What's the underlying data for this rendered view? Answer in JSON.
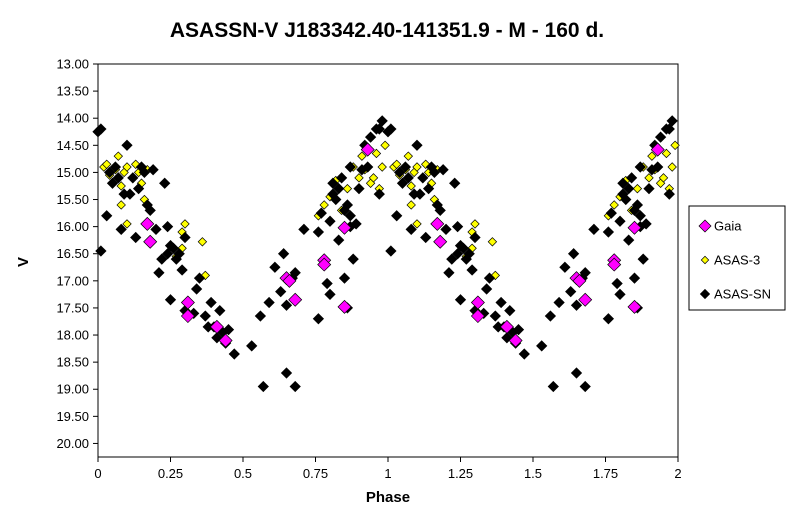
{
  "chart_data": {
    "type": "scatter",
    "title": "ASASSN-V J183342.40-141351.9  - M - 160 d.",
    "xlabel": "Phase",
    "ylabel": "V",
    "xlim": [
      0,
      2
    ],
    "ylim": [
      13.0,
      20.25
    ],
    "y_inverted": true,
    "grid": false,
    "legend_position": "right",
    "x_ticks": [
      "0",
      "0.25",
      "0.5",
      "0.75",
      "1",
      "1.25",
      "1.5",
      "1.75",
      "2"
    ],
    "y_ticks": [
      "13.00",
      "13.50",
      "14.00",
      "14.50",
      "15.00",
      "15.50",
      "16.00",
      "16.50",
      "17.00",
      "17.50",
      "18.00",
      "18.50",
      "19.00",
      "19.50",
      "20.00"
    ],
    "series": [
      {
        "name": "Gaia",
        "color": "#ff00ff",
        "marker": "diamond-large",
        "points": [
          [
            0.17,
            15.95
          ],
          [
            0.18,
            16.28
          ],
          [
            0.31,
            17.4
          ],
          [
            0.31,
            17.65
          ],
          [
            0.41,
            17.85
          ],
          [
            0.44,
            18.1
          ],
          [
            0.65,
            16.95
          ],
          [
            0.66,
            17.0
          ],
          [
            0.68,
            17.35
          ],
          [
            0.78,
            16.62
          ],
          [
            0.78,
            16.7
          ],
          [
            0.85,
            16.02
          ],
          [
            0.85,
            17.48
          ],
          [
            0.93,
            14.58
          ],
          [
            1.17,
            15.95
          ],
          [
            1.18,
            16.28
          ],
          [
            1.31,
            17.4
          ],
          [
            1.31,
            17.65
          ],
          [
            1.41,
            17.85
          ],
          [
            1.44,
            18.1
          ],
          [
            1.65,
            16.95
          ],
          [
            1.66,
            17.0
          ],
          [
            1.68,
            17.35
          ],
          [
            1.78,
            16.62
          ],
          [
            1.78,
            16.7
          ],
          [
            1.85,
            16.02
          ],
          [
            1.85,
            17.48
          ],
          [
            1.93,
            14.58
          ]
        ]
      },
      {
        "name": "ASAS-3",
        "color": "#ffff00",
        "marker": "diamond",
        "points": [
          [
            0.02,
            14.9
          ],
          [
            0.03,
            14.85
          ],
          [
            0.04,
            15.05
          ],
          [
            0.05,
            15.2
          ],
          [
            0.06,
            14.95
          ],
          [
            0.07,
            14.7
          ],
          [
            0.08,
            15.25
          ],
          [
            0.08,
            15.6
          ],
          [
            0.09,
            15.0
          ],
          [
            0.1,
            14.9
          ],
          [
            0.1,
            15.95
          ],
          [
            0.12,
            15.1
          ],
          [
            0.13,
            14.85
          ],
          [
            0.14,
            15.0
          ],
          [
            0.15,
            15.2
          ],
          [
            0.16,
            15.5
          ],
          [
            0.17,
            14.95
          ],
          [
            0.27,
            16.55
          ],
          [
            0.29,
            16.4
          ],
          [
            0.29,
            16.1
          ],
          [
            0.3,
            15.95
          ],
          [
            0.36,
            16.28
          ],
          [
            0.37,
            16.9
          ],
          [
            0.76,
            15.8
          ],
          [
            0.78,
            15.6
          ],
          [
            0.8,
            15.45
          ],
          [
            0.82,
            15.15
          ],
          [
            0.84,
            15.7
          ],
          [
            0.86,
            15.3
          ],
          [
            0.88,
            14.9
          ],
          [
            0.9,
            15.1
          ],
          [
            0.91,
            14.7
          ],
          [
            0.92,
            14.95
          ],
          [
            0.94,
            15.2
          ],
          [
            0.95,
            15.1
          ],
          [
            0.96,
            14.65
          ],
          [
            0.97,
            15.3
          ],
          [
            0.98,
            14.9
          ],
          [
            0.99,
            14.5
          ],
          [
            1.02,
            14.9
          ],
          [
            1.03,
            14.85
          ],
          [
            1.04,
            15.05
          ],
          [
            1.05,
            15.2
          ],
          [
            1.06,
            14.95
          ],
          [
            1.07,
            14.7
          ],
          [
            1.08,
            15.25
          ],
          [
            1.08,
            15.6
          ],
          [
            1.09,
            15.0
          ],
          [
            1.1,
            14.9
          ],
          [
            1.1,
            15.95
          ],
          [
            1.12,
            15.1
          ],
          [
            1.13,
            14.85
          ],
          [
            1.14,
            15.0
          ],
          [
            1.15,
            15.2
          ],
          [
            1.16,
            15.5
          ],
          [
            1.17,
            14.95
          ],
          [
            1.27,
            16.55
          ],
          [
            1.29,
            16.4
          ],
          [
            1.29,
            16.1
          ],
          [
            1.3,
            15.95
          ],
          [
            1.36,
            16.28
          ],
          [
            1.37,
            16.9
          ],
          [
            1.76,
            15.8
          ],
          [
            1.78,
            15.6
          ],
          [
            1.8,
            15.45
          ],
          [
            1.82,
            15.15
          ],
          [
            1.84,
            15.7
          ],
          [
            1.86,
            15.3
          ],
          [
            1.88,
            14.9
          ],
          [
            1.9,
            15.1
          ],
          [
            1.91,
            14.7
          ],
          [
            1.92,
            14.95
          ],
          [
            1.94,
            15.2
          ],
          [
            1.95,
            15.1
          ],
          [
            1.96,
            14.65
          ],
          [
            1.97,
            15.3
          ],
          [
            1.98,
            14.9
          ],
          [
            1.99,
            14.5
          ]
        ]
      },
      {
        "name": "ASAS-SN",
        "color": "#000000",
        "marker": "diamond",
        "points": [
          [
            0.0,
            14.25
          ],
          [
            0.01,
            14.2
          ],
          [
            0.01,
            16.45
          ],
          [
            0.03,
            15.8
          ],
          [
            0.04,
            15.0
          ],
          [
            0.05,
            15.2
          ],
          [
            0.06,
            14.9
          ],
          [
            0.07,
            15.1
          ],
          [
            0.08,
            16.05
          ],
          [
            0.09,
            15.4
          ],
          [
            0.1,
            14.5
          ],
          [
            0.11,
            15.4
          ],
          [
            0.12,
            15.1
          ],
          [
            0.13,
            16.2
          ],
          [
            0.14,
            15.3
          ],
          [
            0.15,
            14.9
          ],
          [
            0.16,
            15.0
          ],
          [
            0.17,
            15.6
          ],
          [
            0.18,
            15.7
          ],
          [
            0.19,
            14.95
          ],
          [
            0.2,
            16.05
          ],
          [
            0.21,
            16.85
          ],
          [
            0.22,
            16.6
          ],
          [
            0.23,
            15.2
          ],
          [
            0.24,
            16.0
          ],
          [
            0.24,
            16.5
          ],
          [
            0.25,
            16.35
          ],
          [
            0.25,
            17.35
          ],
          [
            0.26,
            16.4
          ],
          [
            0.27,
            16.6
          ],
          [
            0.28,
            16.5
          ],
          [
            0.29,
            16.8
          ],
          [
            0.3,
            16.2
          ],
          [
            0.3,
            17.55
          ],
          [
            0.33,
            17.6
          ],
          [
            0.34,
            17.15
          ],
          [
            0.35,
            16.95
          ],
          [
            0.37,
            17.65
          ],
          [
            0.38,
            17.85
          ],
          [
            0.39,
            17.4
          ],
          [
            0.4,
            17.85
          ],
          [
            0.41,
            18.05
          ],
          [
            0.42,
            17.55
          ],
          [
            0.43,
            17.95
          ],
          [
            0.44,
            18.15
          ],
          [
            0.45,
            17.9
          ],
          [
            0.47,
            18.35
          ],
          [
            0.53,
            18.2
          ],
          [
            0.56,
            17.65
          ],
          [
            0.57,
            18.95
          ],
          [
            0.59,
            17.4
          ],
          [
            0.61,
            16.75
          ],
          [
            0.63,
            17.2
          ],
          [
            0.64,
            16.5
          ],
          [
            0.65,
            17.45
          ],
          [
            0.65,
            18.7
          ],
          [
            0.67,
            16.95
          ],
          [
            0.68,
            16.85
          ],
          [
            0.68,
            18.95
          ],
          [
            0.71,
            16.05
          ],
          [
            0.76,
            16.1
          ],
          [
            0.76,
            17.7
          ],
          [
            0.77,
            15.75
          ],
          [
            0.79,
            17.05
          ],
          [
            0.8,
            15.9
          ],
          [
            0.8,
            17.25
          ],
          [
            0.81,
            15.2
          ],
          [
            0.81,
            15.4
          ],
          [
            0.82,
            15.5
          ],
          [
            0.83,
            16.25
          ],
          [
            0.83,
            15.3
          ],
          [
            0.84,
            15.1
          ],
          [
            0.85,
            16.95
          ],
          [
            0.85,
            15.7
          ],
          [
            0.86,
            15.6
          ],
          [
            0.86,
            17.5
          ],
          [
            0.87,
            15.8
          ],
          [
            0.87,
            14.9
          ],
          [
            0.87,
            16.0
          ],
          [
            0.88,
            16.6
          ],
          [
            0.89,
            15.95
          ],
          [
            0.9,
            15.3
          ],
          [
            0.91,
            14.95
          ],
          [
            0.92,
            14.5
          ],
          [
            0.93,
            14.9
          ],
          [
            0.94,
            14.35
          ],
          [
            0.96,
            14.2
          ],
          [
            0.97,
            14.2
          ],
          [
            0.97,
            15.4
          ],
          [
            0.98,
            14.05
          ],
          [
            1.0,
            14.25
          ],
          [
            1.01,
            14.2
          ],
          [
            1.01,
            16.45
          ],
          [
            1.03,
            15.8
          ],
          [
            1.04,
            15.0
          ],
          [
            1.05,
            15.2
          ],
          [
            1.06,
            14.9
          ],
          [
            1.07,
            15.1
          ],
          [
            1.08,
            16.05
          ],
          [
            1.09,
            15.4
          ],
          [
            1.1,
            14.5
          ],
          [
            1.11,
            15.4
          ],
          [
            1.12,
            15.1
          ],
          [
            1.13,
            16.2
          ],
          [
            1.14,
            15.3
          ],
          [
            1.15,
            14.9
          ],
          [
            1.16,
            15.0
          ],
          [
            1.17,
            15.6
          ],
          [
            1.18,
            15.7
          ],
          [
            1.19,
            14.95
          ],
          [
            1.2,
            16.05
          ],
          [
            1.21,
            16.85
          ],
          [
            1.22,
            16.6
          ],
          [
            1.23,
            15.2
          ],
          [
            1.24,
            16.0
          ],
          [
            1.24,
            16.5
          ],
          [
            1.25,
            16.35
          ],
          [
            1.25,
            17.35
          ],
          [
            1.26,
            16.4
          ],
          [
            1.27,
            16.6
          ],
          [
            1.28,
            16.5
          ],
          [
            1.29,
            16.8
          ],
          [
            1.3,
            16.2
          ],
          [
            1.3,
            17.55
          ],
          [
            1.33,
            17.6
          ],
          [
            1.34,
            17.15
          ],
          [
            1.35,
            16.95
          ],
          [
            1.37,
            17.65
          ],
          [
            1.38,
            17.85
          ],
          [
            1.39,
            17.4
          ],
          [
            1.4,
            17.85
          ],
          [
            1.41,
            18.05
          ],
          [
            1.42,
            17.55
          ],
          [
            1.43,
            17.95
          ],
          [
            1.44,
            18.15
          ],
          [
            1.45,
            17.9
          ],
          [
            1.47,
            18.35
          ],
          [
            1.53,
            18.2
          ],
          [
            1.56,
            17.65
          ],
          [
            1.57,
            18.95
          ],
          [
            1.59,
            17.4
          ],
          [
            1.61,
            16.75
          ],
          [
            1.63,
            17.2
          ],
          [
            1.64,
            16.5
          ],
          [
            1.65,
            17.45
          ],
          [
            1.65,
            18.7
          ],
          [
            1.67,
            16.95
          ],
          [
            1.68,
            16.85
          ],
          [
            1.68,
            18.95
          ],
          [
            1.71,
            16.05
          ],
          [
            1.76,
            16.1
          ],
          [
            1.76,
            17.7
          ],
          [
            1.77,
            15.75
          ],
          [
            1.79,
            17.05
          ],
          [
            1.8,
            15.9
          ],
          [
            1.8,
            17.25
          ],
          [
            1.81,
            15.2
          ],
          [
            1.81,
            15.4
          ],
          [
            1.82,
            15.5
          ],
          [
            1.83,
            16.25
          ],
          [
            1.83,
            15.3
          ],
          [
            1.84,
            15.1
          ],
          [
            1.85,
            16.95
          ],
          [
            1.85,
            15.7
          ],
          [
            1.86,
            15.6
          ],
          [
            1.86,
            17.5
          ],
          [
            1.87,
            15.8
          ],
          [
            1.87,
            14.9
          ],
          [
            1.87,
            16.0
          ],
          [
            1.88,
            16.6
          ],
          [
            1.89,
            15.95
          ],
          [
            1.9,
            15.3
          ],
          [
            1.91,
            14.95
          ],
          [
            1.92,
            14.5
          ],
          [
            1.93,
            14.9
          ],
          [
            1.94,
            14.35
          ],
          [
            1.96,
            14.2
          ],
          [
            1.97,
            14.2
          ],
          [
            1.97,
            15.4
          ],
          [
            1.98,
            14.05
          ]
        ]
      }
    ]
  }
}
